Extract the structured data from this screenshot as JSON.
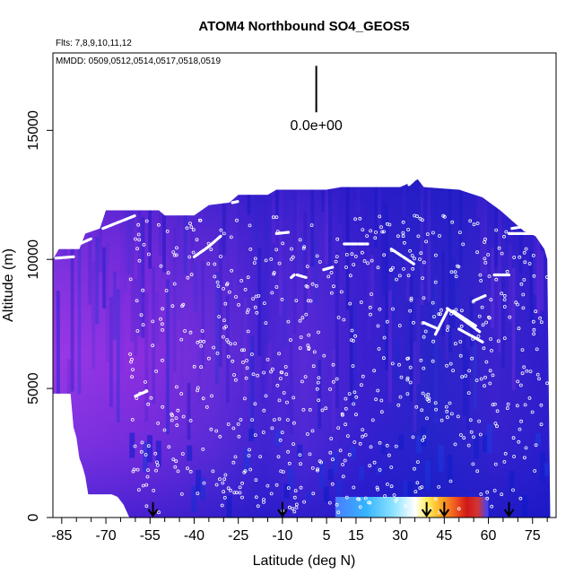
{
  "chart_data": {
    "type": "heatmap",
    "title": "ATOM4 Northbound SO4_GEOS5",
    "flights_label": "Flts: 7,8,9,10,11,12",
    "dates_label": "MMDD: 0509,0512,0514,0517,0518,0519",
    "scale_label": "0.0e+00",
    "xlabel": "Latitude (deg N)",
    "ylabel": "Altitude (m)",
    "xlim": [
      -88,
      83
    ],
    "ylim": [
      0,
      18000
    ],
    "x_ticks": [
      -85,
      -70,
      -55,
      -40,
      -25,
      -10,
      5,
      15,
      30,
      45,
      60,
      75
    ],
    "x_tick_labels": [
      "-85",
      "-70",
      "-55",
      "-40",
      "-25",
      "-10",
      "5",
      "15",
      "30",
      "45",
      "60",
      "75"
    ],
    "x_minor_ticks": [
      -80,
      -75,
      -65,
      -60,
      -50,
      -45,
      -35,
      -30,
      -20,
      -15,
      -5,
      0,
      10,
      20,
      25,
      35,
      40,
      50,
      55,
      65,
      70,
      80
    ],
    "y_ticks": [
      0,
      5000,
      10000,
      15000
    ],
    "y_tick_labels": [
      "0",
      "5000",
      "10000",
      "15000"
    ],
    "top_profile": [
      [
        -88,
        10000
      ],
      [
        -86,
        10400
      ],
      [
        -79,
        10400
      ],
      [
        -77,
        11000
      ],
      [
        -72,
        11200
      ],
      [
        -70,
        11900
      ],
      [
        -52,
        11900
      ],
      [
        -50,
        11700
      ],
      [
        -40,
        11700
      ],
      [
        -35,
        12100
      ],
      [
        -28,
        12200
      ],
      [
        -25,
        12500
      ],
      [
        -15,
        12500
      ],
      [
        -12,
        12700
      ],
      [
        5,
        12700
      ],
      [
        10,
        12800
      ],
      [
        23,
        12800
      ],
      [
        30,
        12800
      ],
      [
        32,
        12900
      ],
      [
        36,
        13100
      ],
      [
        38,
        12800
      ],
      [
        50,
        12700
      ],
      [
        58,
        12400
      ],
      [
        64,
        11900
      ],
      [
        69,
        11400
      ],
      [
        72,
        11100
      ],
      [
        76,
        10900
      ],
      [
        79,
        10400
      ],
      [
        80,
        10000
      ],
      [
        81,
        0
      ]
    ],
    "bottom_profile": [
      [
        -88,
        4800
      ],
      [
        -82,
        4800
      ],
      [
        -81,
        3500
      ],
      [
        -80,
        3100
      ],
      [
        -79,
        2300
      ],
      [
        -78,
        2000
      ],
      [
        -77,
        1600
      ],
      [
        -76,
        900
      ],
      [
        -70,
        900
      ],
      [
        -68,
        900
      ],
      [
        -66,
        800
      ],
      [
        -64,
        500
      ],
      [
        -62,
        0
      ]
    ],
    "hotspot": {
      "x_range": [
        8,
        60
      ],
      "y_range": [
        0,
        800
      ],
      "peak_x": [
        48,
        53
      ],
      "colors": [
        "#4a7dff",
        "#35b4ff",
        "#8de3ff",
        "#ffffff",
        "#ffef5a",
        "#ffb12a",
        "#f05a1e",
        "#d01818",
        "#d43535",
        "#3a42ff"
      ],
      "stops": [
        0.0,
        0.2,
        0.38,
        0.52,
        0.6,
        0.68,
        0.78,
        0.86,
        0.93,
        1.0
      ]
    },
    "flight_tracks": [
      [
        [
          -87,
          10050
        ],
        [
          -81,
          10100
        ]
      ],
      [
        [
          -79,
          10600
        ],
        [
          -75,
          10800
        ]
      ],
      [
        [
          -71,
          11200
        ],
        [
          -60,
          11700
        ]
      ],
      [
        [
          -40,
          10100
        ],
        [
          -35,
          10500
        ],
        [
          -31,
          10900
        ]
      ],
      [
        [
          -27,
          12200
        ],
        [
          -25,
          12250
        ]
      ],
      [
        [
          -12,
          11000
        ],
        [
          -8,
          11050
        ]
      ],
      [
        [
          -5,
          9400
        ],
        [
          -2,
          9300
        ]
      ],
      [
        [
          -7,
          9300
        ],
        [
          -6,
          9400
        ]
      ],
      [
        [
          4,
          9600
        ],
        [
          7,
          9700
        ]
      ],
      [
        [
          11,
          10600
        ],
        [
          19,
          10600
        ]
      ],
      [
        [
          27,
          10400
        ],
        [
          35,
          9800
        ]
      ],
      [
        [
          42,
          7100
        ],
        [
          46,
          8000
        ]
      ],
      [
        [
          46,
          8100
        ],
        [
          51,
          7700
        ],
        [
          57,
          7200
        ]
      ],
      [
        [
          48,
          8000
        ],
        [
          56,
          7400
        ]
      ],
      [
        [
          62,
          9400
        ],
        [
          67,
          9400
        ]
      ],
      [
        [
          67,
          11000
        ],
        [
          75,
          11000
        ]
      ],
      [
        [
          68,
          11200
        ],
        [
          74,
          11300
        ]
      ],
      [
        [
          55,
          8400
        ],
        [
          59,
          8600
        ]
      ],
      [
        [
          50,
          7300
        ],
        [
          58,
          6800
        ]
      ],
      [
        [
          -60,
          4700
        ],
        [
          -56,
          4900
        ]
      ],
      [
        [
          38,
          7550
        ],
        [
          43,
          7300
        ]
      ],
      [
        [
          33,
          12900
        ],
        [
          36,
          13200
        ]
      ]
    ],
    "arrows_x": [
      -54,
      -10,
      39,
      45,
      67
    ],
    "scale_bar": {
      "x": 1.5,
      "y_top": 17500,
      "y_bottom": 15700
    },
    "grid": false,
    "legend": "none"
  }
}
